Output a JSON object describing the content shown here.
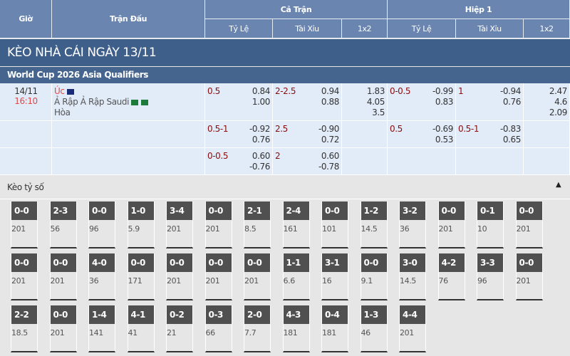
{
  "header": {
    "time": "Giờ",
    "match": "Trận Đấu",
    "full": "Cả Trận",
    "half": "Hiệp 1",
    "sub": [
      "Tỷ Lệ",
      "Tài Xỉu",
      "1x2",
      "Tỷ Lệ",
      "Tài Xỉu",
      "1x2"
    ]
  },
  "title": "KÈO NHÀ CÁI NGÀY 13/11",
  "league": "World Cup 2026 Asia Qualifiers",
  "match": {
    "date": "14/11",
    "time": "16:10",
    "home": "Úc",
    "away": "Ả Rập Ả Rập Saudi",
    "draw": "Hòa"
  },
  "rows": [
    {
      "hdp": "0.5",
      "hdp_odds": [
        "0.84",
        "1.00"
      ],
      "ou": "2-2.5",
      "ou_odds": [
        "0.94",
        "0.88"
      ],
      "x12": [
        "1.83",
        "4.05",
        "3.5"
      ],
      "h_hdp": "0-0.5",
      "h_hdp_odds": [
        "-0.99",
        "0.83"
      ],
      "h_ou": "1",
      "h_ou_odds": [
        "-0.94",
        "0.76"
      ],
      "h_x12": [
        "2.47",
        "4.6",
        "2.09"
      ]
    },
    {
      "hdp": "0.5-1",
      "hdp_odds": [
        "-0.92",
        "0.76"
      ],
      "ou": "2.5",
      "ou_odds": [
        "-0.90",
        "0.72"
      ],
      "x12": [],
      "h_hdp": "0.5",
      "h_hdp_odds": [
        "-0.69",
        "0.53"
      ],
      "h_ou": "0.5-1",
      "h_ou_odds": [
        "-0.83",
        "0.65"
      ],
      "h_x12": []
    },
    {
      "hdp": "0-0.5",
      "hdp_odds": [
        "0.60",
        "-0.76"
      ],
      "ou": "2",
      "ou_odds": [
        "0.60",
        "-0.78"
      ],
      "x12": [],
      "h_hdp": "",
      "h_hdp_odds": [],
      "h_ou": "",
      "h_ou_odds": [],
      "h_x12": []
    }
  ],
  "correct_score": {
    "title": "Kèo tỷ số",
    "collapse_icon": "triangle-up-icon",
    "items": [
      [
        "0-0",
        "201"
      ],
      [
        "2-3",
        "56"
      ],
      [
        "0-0",
        "96"
      ],
      [
        "1-0",
        "5.9"
      ],
      [
        "3-4",
        "201"
      ],
      [
        "0-0",
        "201"
      ],
      [
        "2-1",
        "8.5"
      ],
      [
        "2-4",
        "161"
      ],
      [
        "0-0",
        "101"
      ],
      [
        "1-2",
        "14.5"
      ],
      [
        "3-2",
        "36"
      ],
      [
        "0-0",
        "201"
      ],
      [
        "0-1",
        "10"
      ],
      [
        "0-0",
        "201"
      ],
      [
        "0-0",
        "201"
      ],
      [
        "0-0",
        "201"
      ],
      [
        "4-0",
        "36"
      ],
      [
        "0-0",
        "171"
      ],
      [
        "0-0",
        "201"
      ],
      [
        "0-0",
        "201"
      ],
      [
        "0-0",
        "201"
      ],
      [
        "1-1",
        "6.6"
      ],
      [
        "3-1",
        "16"
      ],
      [
        "0-0",
        "9.1"
      ],
      [
        "3-0",
        "14.5"
      ],
      [
        "4-2",
        "76"
      ],
      [
        "3-3",
        "96"
      ],
      [
        "0-0",
        "201"
      ],
      [
        "2-2",
        "18.5"
      ],
      [
        "0-0",
        "201"
      ],
      [
        "1-4",
        "141"
      ],
      [
        "4-1",
        "41"
      ],
      [
        "0-2",
        "21"
      ],
      [
        "0-3",
        "66"
      ],
      [
        "2-0",
        "7.7"
      ],
      [
        "4-3",
        "181"
      ],
      [
        "0-4",
        "181"
      ],
      [
        "1-3",
        "46"
      ],
      [
        "4-4",
        "201"
      ]
    ]
  }
}
